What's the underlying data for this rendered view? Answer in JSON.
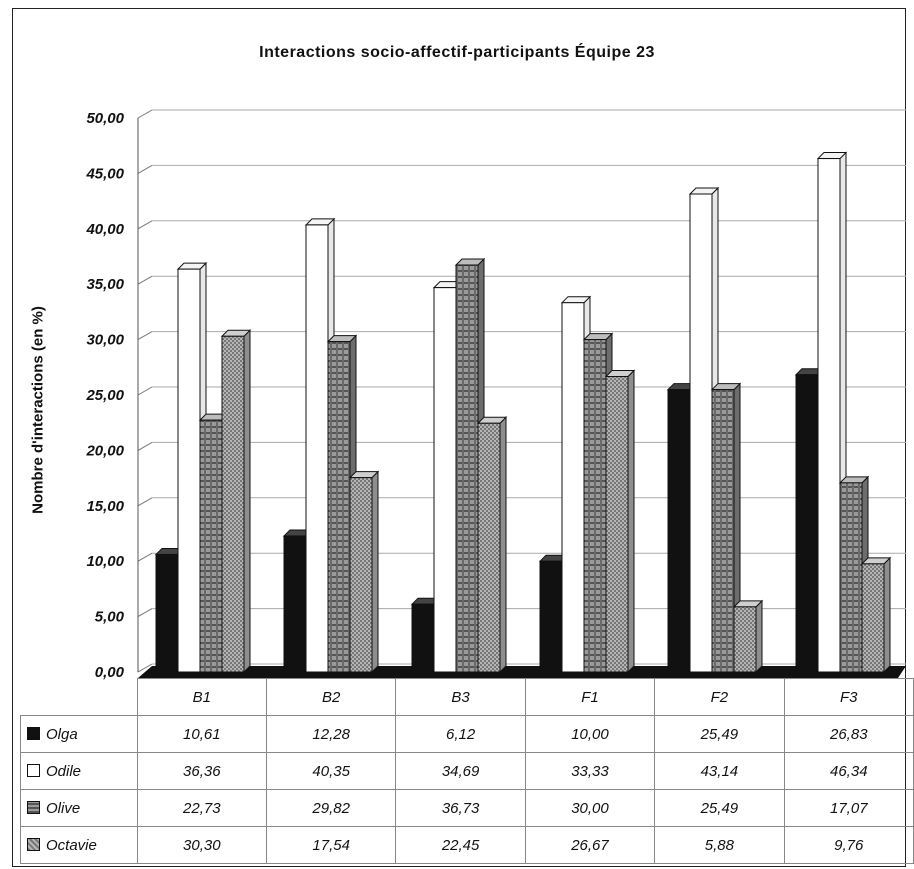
{
  "chart_data": {
    "type": "bar",
    "title": "Interactions socio-affectif-participants Équipe 23",
    "ylabel": "Nombre d'interactions (en %)",
    "xlabel": "",
    "ylim": [
      0,
      50
    ],
    "yticks": [
      "0,00",
      "5,00",
      "10,00",
      "15,00",
      "20,00",
      "25,00",
      "30,00",
      "35,00",
      "40,00",
      "45,00",
      "50,00"
    ],
    "categories": [
      "B1",
      "B2",
      "B3",
      "F1",
      "F2",
      "F3"
    ],
    "grid": true,
    "legend": "data-table",
    "series": [
      {
        "name": "Olga",
        "values": [
          10.61,
          12.28,
          6.12,
          10.0,
          25.49,
          26.83
        ],
        "labels": [
          "10,61",
          "12,28",
          "6,12",
          "10,00",
          "25,49",
          "26,83"
        ],
        "color": "#111111"
      },
      {
        "name": "Odile",
        "values": [
          36.36,
          40.35,
          34.69,
          33.33,
          43.14,
          46.34
        ],
        "labels": [
          "36,36",
          "40,35",
          "34,69",
          "33,33",
          "43,14",
          "46,34"
        ],
        "color": "#ffffff"
      },
      {
        "name": "Olive",
        "values": [
          22.73,
          29.82,
          36.73,
          30.0,
          25.49,
          17.07
        ],
        "labels": [
          "22,73",
          "29,82",
          "36,73",
          "30,00",
          "25,49",
          "17,07"
        ],
        "color": "#8f8f8f"
      },
      {
        "name": "Octavie",
        "values": [
          30.3,
          17.54,
          22.45,
          26.67,
          5.88,
          9.76
        ],
        "labels": [
          "30,30",
          "17,54",
          "22,45",
          "26,67",
          "5,88",
          "9,76"
        ],
        "color": "#a9a9a9"
      }
    ]
  }
}
